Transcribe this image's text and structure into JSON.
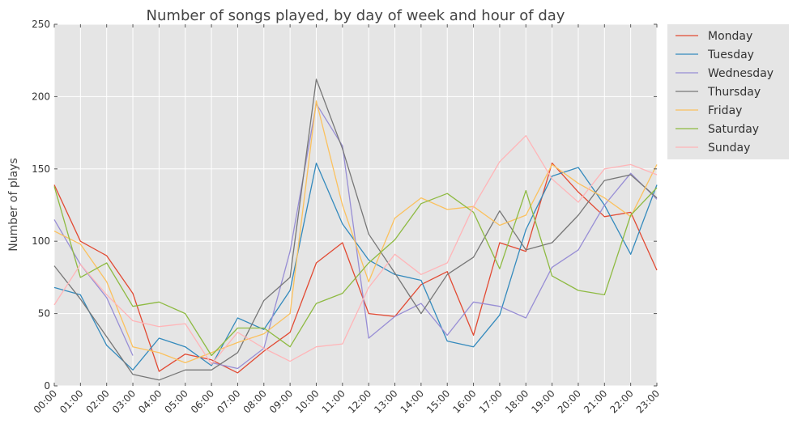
{
  "chart_data": {
    "type": "line",
    "title": "Number of songs played, by day of week and hour of day",
    "xlabel": "",
    "ylabel": "Number of plays",
    "ylim": [
      0,
      250
    ],
    "yticks": [
      0,
      50,
      100,
      150,
      200,
      250
    ],
    "grid": true,
    "legend_position": "outside-top-right",
    "categories": [
      "00:00",
      "01:00",
      "02:00",
      "03:00",
      "04:00",
      "05:00",
      "06:00",
      "07:00",
      "08:00",
      "09:00",
      "10:00",
      "11:00",
      "12:00",
      "13:00",
      "14:00",
      "15:00",
      "16:00",
      "17:00",
      "18:00",
      "19:00",
      "20:00",
      "21:00",
      "22:00",
      "23:00"
    ],
    "series": [
      {
        "name": "Monday",
        "color": "#e24a33",
        "values": [
          139,
          100,
          90,
          64,
          10,
          22,
          18,
          9,
          24,
          37,
          85,
          99,
          50,
          48,
          70,
          79,
          35,
          99,
          93,
          154,
          134,
          117,
          120,
          80
        ]
      },
      {
        "name": "Tuesday",
        "color": "#348abd",
        "values": [
          68,
          63,
          28,
          11,
          33,
          27,
          14,
          47,
          39,
          66,
          154,
          112,
          87,
          77,
          73,
          31,
          27,
          49,
          108,
          145,
          151,
          125,
          91,
          139
        ]
      },
      {
        "name": "Wednesday",
        "color": "#988ed5",
        "values": [
          115,
          84,
          61,
          21,
          null,
          null,
          16,
          12,
          26,
          93,
          195,
          166,
          33,
          48,
          57,
          35,
          58,
          55,
          47,
          82,
          94,
          125,
          147,
          129
        ]
      },
      {
        "name": "Thursday",
        "color": "#777777",
        "values": [
          83,
          60,
          34,
          8,
          4,
          11,
          11,
          23,
          59,
          75,
          212,
          164,
          105,
          78,
          50,
          77,
          89,
          121,
          94,
          99,
          118,
          142,
          146,
          130
        ]
      },
      {
        "name": "Friday",
        "color": "#fbc15e",
        "values": [
          107,
          98,
          72,
          27,
          23,
          16,
          23,
          30,
          36,
          50,
          197,
          125,
          72,
          116,
          130,
          122,
          124,
          111,
          118,
          153,
          140,
          130,
          117,
          153
        ]
      },
      {
        "name": "Saturday",
        "color": "#8eba42",
        "values": [
          138,
          75,
          85,
          55,
          58,
          50,
          21,
          40,
          40,
          27,
          57,
          64,
          85,
          101,
          126,
          133,
          120,
          81,
          135,
          76,
          66,
          63,
          118,
          137
        ]
      },
      {
        "name": "Sunday",
        "color": "#ffb5b8",
        "values": [
          56,
          84,
          63,
          45,
          41,
          43,
          15,
          37,
          26,
          17,
          27,
          29,
          68,
          91,
          77,
          85,
          124,
          155,
          173,
          143,
          127,
          150,
          153,
          146
        ]
      }
    ]
  }
}
